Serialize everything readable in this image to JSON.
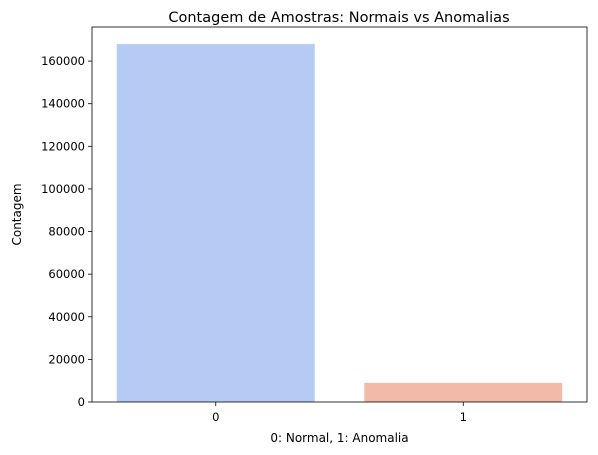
{
  "chart_data": {
    "type": "bar",
    "title": "Contagem de Amostras: Normais vs Anomalias",
    "xlabel": "0: Normal, 1: Anomalia",
    "ylabel": "Contagem",
    "categories": [
      "0",
      "1"
    ],
    "values": [
      168000,
      9000
    ],
    "colors": [
      "#b5cbf4",
      "#f2bba7"
    ],
    "ylim": [
      0,
      176000
    ],
    "yticks": [
      0,
      20000,
      40000,
      60000,
      80000,
      100000,
      120000,
      140000,
      160000
    ],
    "grid": false,
    "legend": "none"
  }
}
